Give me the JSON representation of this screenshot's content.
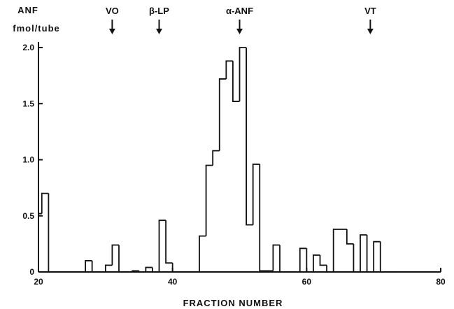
{
  "chart_data": {
    "type": "bar",
    "title": "",
    "ylabel_line1": "ANF",
    "ylabel_line2": "fmol/tube",
    "xlabel": "FRACTION NUMBER",
    "xlim": [
      20,
      80
    ],
    "ylim": [
      0,
      2.0
    ],
    "xticks": [
      "20",
      "40",
      "60",
      "80"
    ],
    "yticks": [
      "0",
      "0.5",
      "1.0",
      "1.5",
      "2.0"
    ],
    "grid": false,
    "markers": [
      {
        "label": "VO",
        "x": 31
      },
      {
        "label": "β-LP",
        "x": 38
      },
      {
        "label": "α-ANF",
        "x": 50
      },
      {
        "label": "VT",
        "x": 69.5
      }
    ],
    "steps": [
      {
        "x0": 20,
        "x1": 20.5,
        "y": 0.52
      },
      {
        "x0": 20.5,
        "x1": 21.5,
        "y": 0.7
      },
      {
        "x0": 21.5,
        "x1": 27,
        "y": 0.0
      },
      {
        "x0": 27,
        "x1": 28,
        "y": 0.1
      },
      {
        "x0": 28,
        "x1": 30,
        "y": 0.0
      },
      {
        "x0": 30,
        "x1": 31,
        "y": 0.06
      },
      {
        "x0": 31,
        "x1": 32,
        "y": 0.24
      },
      {
        "x0": 32,
        "x1": 34,
        "y": 0.0
      },
      {
        "x0": 34,
        "x1": 35,
        "y": 0.01
      },
      {
        "x0": 35,
        "x1": 36,
        "y": 0.0
      },
      {
        "x0": 36,
        "x1": 37,
        "y": 0.04
      },
      {
        "x0": 37,
        "x1": 38,
        "y": 0.0
      },
      {
        "x0": 38,
        "x1": 39,
        "y": 0.46
      },
      {
        "x0": 39,
        "x1": 40,
        "y": 0.08
      },
      {
        "x0": 40,
        "x1": 44,
        "y": 0.0
      },
      {
        "x0": 44,
        "x1": 45,
        "y": 0.32
      },
      {
        "x0": 45,
        "x1": 46,
        "y": 0.95
      },
      {
        "x0": 46,
        "x1": 47,
        "y": 1.08
      },
      {
        "x0": 47,
        "x1": 48,
        "y": 1.72
      },
      {
        "x0": 48,
        "x1": 49,
        "y": 1.88
      },
      {
        "x0": 49,
        "x1": 50,
        "y": 1.52
      },
      {
        "x0": 50,
        "x1": 51,
        "y": 2.0
      },
      {
        "x0": 51,
        "x1": 52,
        "y": 0.42
      },
      {
        "x0": 52,
        "x1": 53,
        "y": 0.96
      },
      {
        "x0": 53,
        "x1": 55,
        "y": 0.01
      },
      {
        "x0": 55,
        "x1": 56,
        "y": 0.24
      },
      {
        "x0": 56,
        "x1": 59,
        "y": 0.0
      },
      {
        "x0": 59,
        "x1": 60,
        "y": 0.21
      },
      {
        "x0": 60,
        "x1": 61,
        "y": 0.0
      },
      {
        "x0": 61,
        "x1": 62,
        "y": 0.15
      },
      {
        "x0": 62,
        "x1": 63,
        "y": 0.06
      },
      {
        "x0": 63,
        "x1": 64,
        "y": 0.0
      },
      {
        "x0": 64,
        "x1": 66,
        "y": 0.38
      },
      {
        "x0": 66,
        "x1": 67,
        "y": 0.25
      },
      {
        "x0": 67,
        "x1": 68,
        "y": 0.0
      },
      {
        "x0": 68,
        "x1": 69,
        "y": 0.33
      },
      {
        "x0": 69,
        "x1": 70,
        "y": 0.0
      },
      {
        "x0": 70,
        "x1": 71,
        "y": 0.27
      },
      {
        "x0": 71,
        "x1": 74,
        "y": 0.0
      }
    ]
  }
}
